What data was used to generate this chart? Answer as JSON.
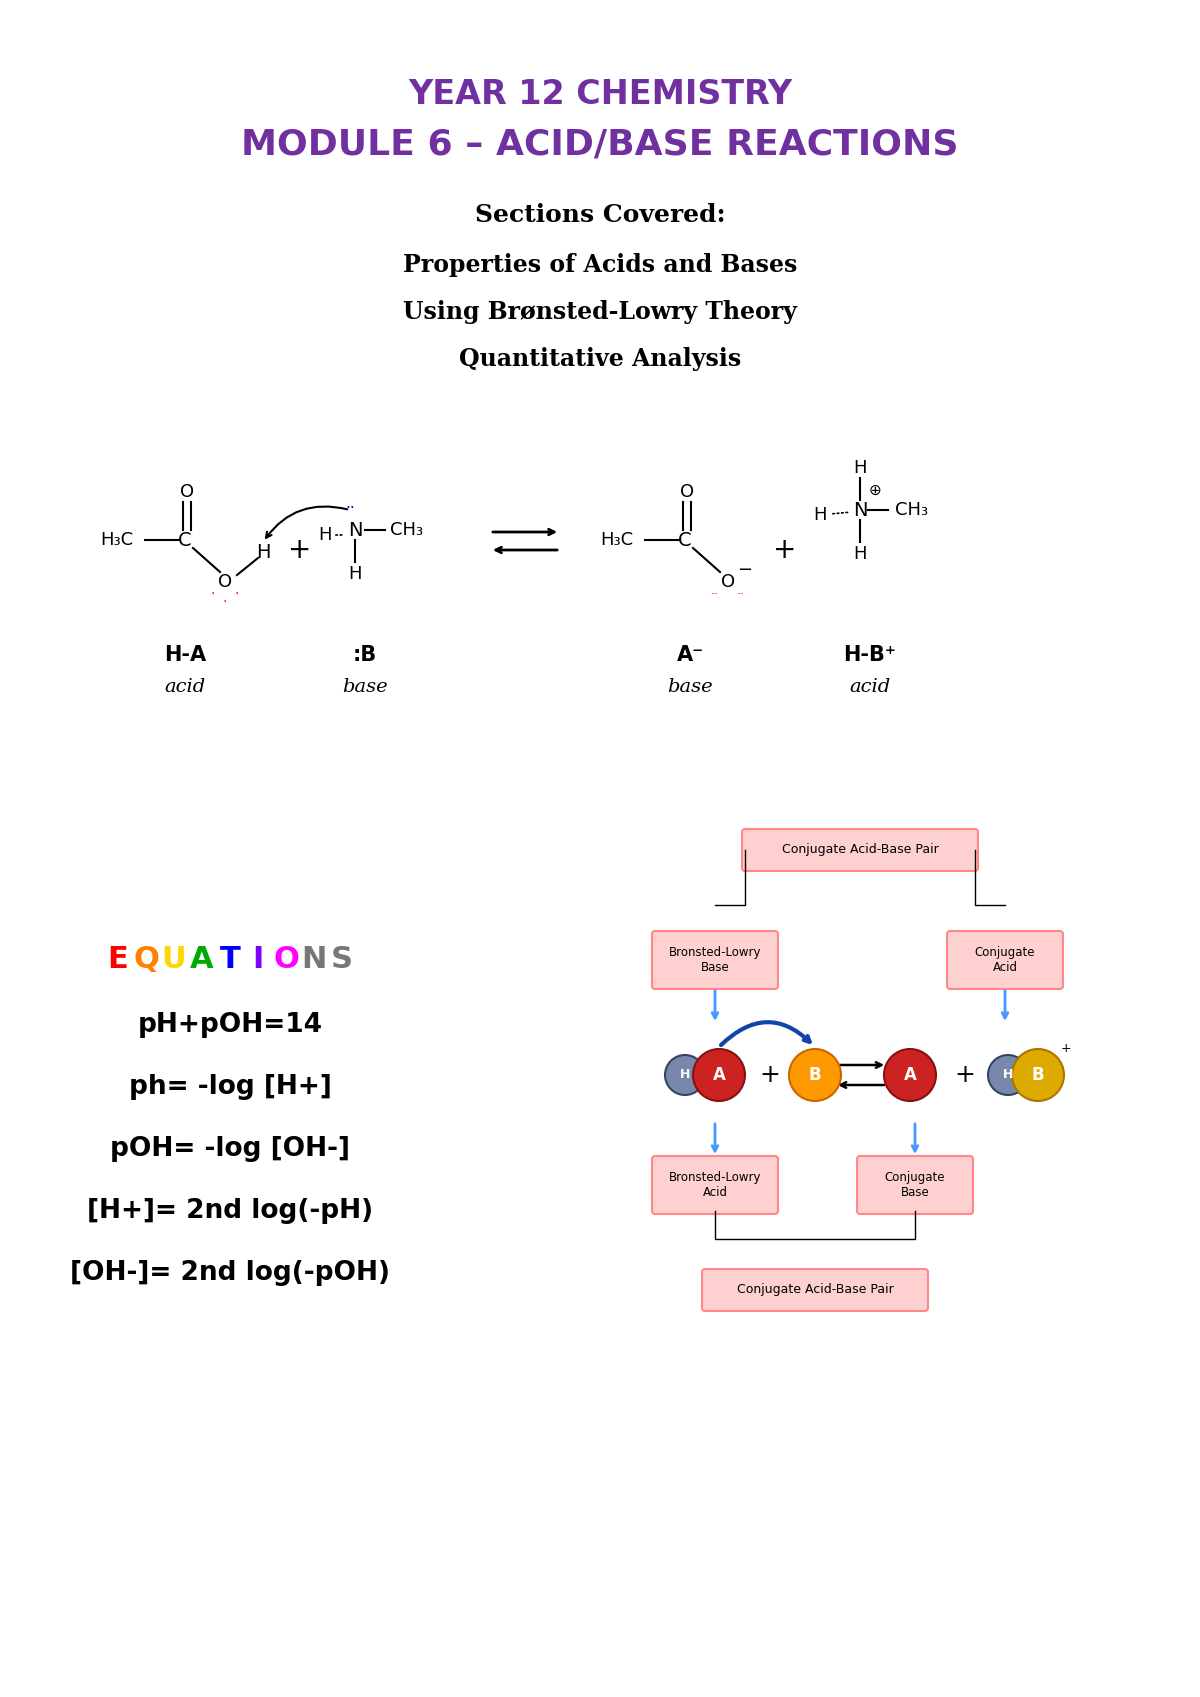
{
  "title1": "YEAR 12 CHEMISTRY",
  "title2": "MODULE 6 – ACID/BASE REACTIONS",
  "title_color": "#7030A0",
  "sections_title": "Sections Covered:",
  "sections": [
    "Properties of Acids and Bases",
    "Using Brønsted-Lowry Theory",
    "Quantitative Analysis"
  ],
  "equations": [
    "pH+pOH=14",
    "ph= -log [H+]",
    "pOH= -log [OH-]",
    "[H+]= 2nd log(-pH)",
    "[OH-]= 2nd log(-pOH)"
  ],
  "eq_letters": [
    "E",
    "Q",
    "U",
    "A",
    "T",
    "I",
    "O",
    "N",
    "S"
  ],
  "eq_colors": [
    "#FF0000",
    "#FF8000",
    "#FFD700",
    "#00AA00",
    "#0000FF",
    "#8000FF",
    "#FF00FF",
    "#777777",
    "#777777"
  ],
  "background_color": "#ffffff"
}
